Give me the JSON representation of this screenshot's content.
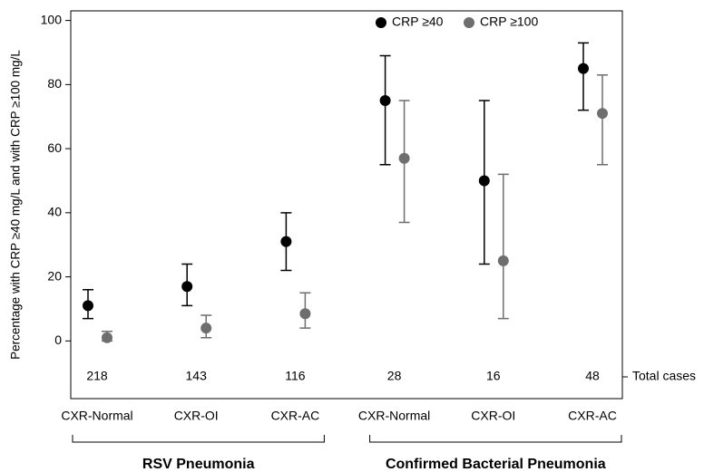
{
  "chart_data": {
    "type": "errorbar",
    "y_label": "Percentage with CRP ≥40 mg/L and with CRP ≥100 mg/L",
    "categories": [
      "CXR-Normal",
      "CXR-OI",
      "CXR-AC",
      "CXR-Normal",
      "CXR-OI",
      "CXR-AC"
    ],
    "group_labels": [
      "RSV Pneumonia",
      "Confirmed Bacterial Pneumonia"
    ],
    "total_cases_label": "Total cases",
    "total_cases": [
      218,
      143,
      116,
      28,
      16,
      48
    ],
    "series": [
      {
        "name": "CRP ≥40",
        "color": "#000000",
        "values": [
          11,
          17,
          31,
          75,
          50,
          85
        ],
        "lower": [
          7,
          11,
          22,
          55,
          24,
          72
        ],
        "upper": [
          16,
          24,
          40,
          89,
          75,
          93
        ]
      },
      {
        "name": "CRP ≥100",
        "color": "#6e6e6e",
        "values": [
          1,
          4,
          8.5,
          57,
          25,
          71
        ],
        "lower": [
          0,
          1,
          4,
          37,
          7,
          55
        ],
        "upper": [
          3,
          8,
          15,
          75,
          52,
          83
        ]
      }
    ],
    "ylim": [
      -18,
      103
    ],
    "yticks": [
      0,
      20,
      40,
      60,
      80,
      100
    ]
  }
}
